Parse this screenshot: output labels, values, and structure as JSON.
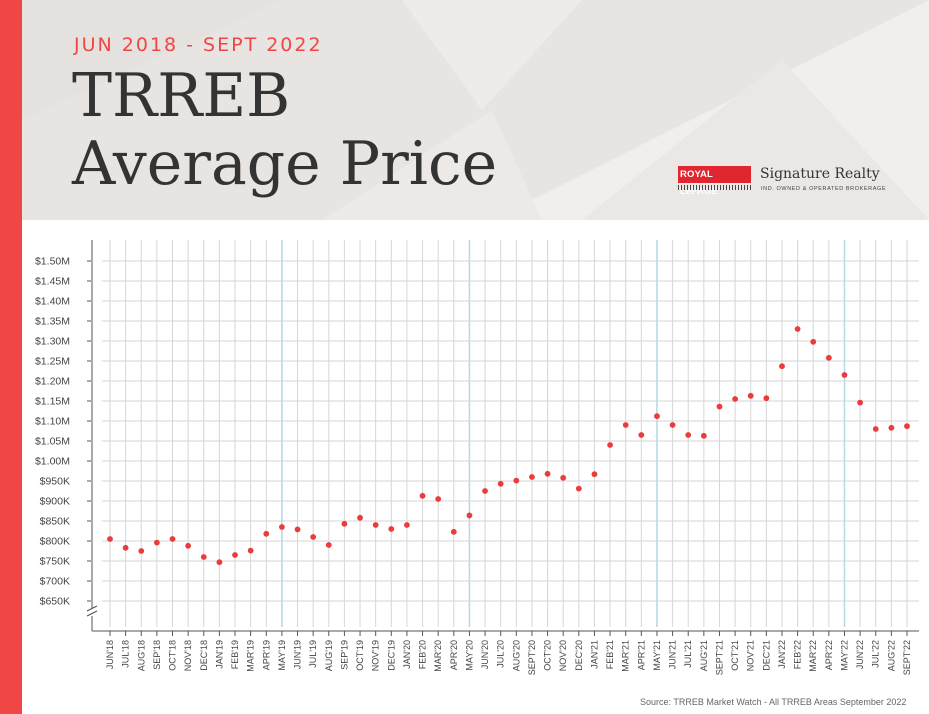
{
  "header": {
    "subtitle": "JUN 2018 - SEPT 2022",
    "title_line1": "TRREB",
    "title_line2": "Average Price"
  },
  "logo": {
    "brand": "ROYAL LePAGE",
    "name": "Signature Realty",
    "tagline": "IND. OWNED & OPERATED BROKERAGE"
  },
  "colors": {
    "accent": "#f04646",
    "dot": "#ec3b3b",
    "header_bg": "#e8e4e1",
    "grid": "#d6d6d6",
    "grid_highlight": "#b9d8ea"
  },
  "source": "Source: TRREB Market Watch - All TRREB Areas September 2022",
  "chart_data": {
    "type": "scatter",
    "title": "TRREB Average Price",
    "xlabel": "",
    "ylabel": "",
    "ylim": [
      650000,
      1500000
    ],
    "y_ticks": [
      {
        "value": 650000,
        "label": "$650K"
      },
      {
        "value": 700000,
        "label": "$700K"
      },
      {
        "value": 750000,
        "label": "$750K"
      },
      {
        "value": 800000,
        "label": "$800K"
      },
      {
        "value": 850000,
        "label": "$850K"
      },
      {
        "value": 900000,
        "label": "$900K"
      },
      {
        "value": 950000,
        "label": "$950K"
      },
      {
        "value": 1000000,
        "label": "$1.00M"
      },
      {
        "value": 1050000,
        "label": "$1.05M"
      },
      {
        "value": 1100000,
        "label": "$1.10M"
      },
      {
        "value": 1150000,
        "label": "$1.15M"
      },
      {
        "value": 1200000,
        "label": "$1.20M"
      },
      {
        "value": 1250000,
        "label": "$1.25M"
      },
      {
        "value": 1300000,
        "label": "$1.30M"
      },
      {
        "value": 1350000,
        "label": "$1.35M"
      },
      {
        "value": 1400000,
        "label": "$1.40M"
      },
      {
        "value": 1450000,
        "label": "$1.45M"
      },
      {
        "value": 1500000,
        "label": "$1.50M"
      }
    ],
    "highlight_categories": [
      "MAY'19",
      "MAY'20",
      "MAY'21",
      "MAY'22"
    ],
    "grid": true,
    "axis_break": true,
    "categories": [
      "JUN'18",
      "JUL'18",
      "AUG'18",
      "SEP'18",
      "OCT'18",
      "NOV'18",
      "DEC'18",
      "JAN'19",
      "FEB'19",
      "MAR'19",
      "APR'19",
      "MAY'19",
      "JUN'19",
      "JUL'19",
      "AUG'19",
      "SEP'19",
      "OCT'19",
      "NOV'19",
      "DEC'19",
      "JAN'20",
      "FEB'20",
      "MAR'20",
      "APR'20",
      "MAY'20",
      "JUN'20",
      "JUL'20",
      "AUG'20",
      "SEPT'20",
      "OCT'20",
      "NOV'20",
      "DEC'20",
      "JAN'21",
      "FEB'21",
      "MAR'21",
      "APR'21",
      "MAY'21",
      "JUN'21",
      "JUL'21",
      "AUG'21",
      "SEPT'21",
      "OCT'21",
      "NOV'21",
      "DEC'21",
      "JAN'22",
      "FEB'22",
      "MAR'22",
      "APR'22",
      "MAY'22",
      "JUN'22",
      "JUL'22",
      "AUG'22",
      "SEPT'22"
    ],
    "values": [
      805000,
      783000,
      775000,
      796000,
      805000,
      788000,
      760000,
      747000,
      765000,
      776000,
      818000,
      835000,
      829000,
      810000,
      790000,
      843000,
      858000,
      840000,
      830000,
      840000,
      913000,
      905000,
      823000,
      864000,
      925000,
      943000,
      951000,
      960000,
      968000,
      958000,
      931000,
      967000,
      1040000,
      1090000,
      1065000,
      1112000,
      1090000,
      1065000,
      1063000,
      1136000,
      1155000,
      1163000,
      1157000,
      1237000,
      1330000,
      1298000,
      1258000,
      1215000,
      1146000,
      1080000,
      1083000,
      1087000
    ]
  }
}
